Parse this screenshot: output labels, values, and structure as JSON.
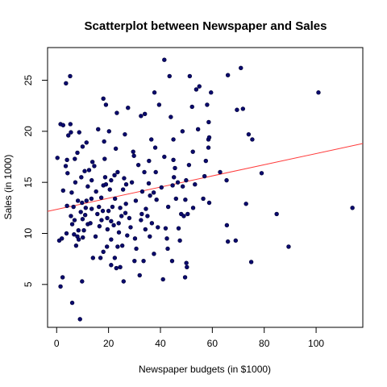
{
  "chart_data": {
    "type": "scatter",
    "title": "Scatterplot between Newspaper and Sales",
    "xlabel": "Newspaper budgets (in $1000)",
    "ylabel": "Sales (in 1000)",
    "xlim": [
      -3.5,
      118
    ],
    "ylim": [
      0.8,
      28.2
    ],
    "x_ticks": [
      0,
      20,
      40,
      60,
      80,
      100
    ],
    "y_ticks": [
      5,
      10,
      15,
      20,
      25
    ],
    "grid": false,
    "point_color": "#0a0a6e",
    "line_color": "#ff3b3b",
    "fit_line": {
      "intercept": 12.35,
      "slope": 0.0547
    },
    "points": [
      [
        0.3,
        17.4
      ],
      [
        1.0,
        9.3
      ],
      [
        1.5,
        4.8
      ],
      [
        1.5,
        20.7
      ],
      [
        2.0,
        9.5
      ],
      [
        2.3,
        5.7
      ],
      [
        2.5,
        14.2
      ],
      [
        2.5,
        20.6
      ],
      [
        3.5,
        16.6
      ],
      [
        3.6,
        24.7
      ],
      [
        3.8,
        10.0
      ],
      [
        4.0,
        17.2
      ],
      [
        4.0,
        12.7
      ],
      [
        4.2,
        15.9
      ],
      [
        4.5,
        19.6
      ],
      [
        5.2,
        25.4
      ],
      [
        5.3,
        20.7
      ],
      [
        5.5,
        19.9
      ],
      [
        5.5,
        11.7
      ],
      [
        5.8,
        14.0
      ],
      [
        6.0,
        10.9
      ],
      [
        6.0,
        3.2
      ],
      [
        6.5,
        12.6
      ],
      [
        6.7,
        9.9
      ],
      [
        6.9,
        11.3
      ],
      [
        7.0,
        17.3
      ],
      [
        7.2,
        15.0
      ],
      [
        7.5,
        8.8
      ],
      [
        8.0,
        17.9
      ],
      [
        8.0,
        9.7
      ],
      [
        8.2,
        13.2
      ],
      [
        8.4,
        10.3
      ],
      [
        8.5,
        9.4
      ],
      [
        8.7,
        19.9
      ],
      [
        9.0,
        1.6
      ],
      [
        9.3,
        12.1
      ],
      [
        9.5,
        15.5
      ],
      [
        9.8,
        5.3
      ],
      [
        9.8,
        13.0
      ],
      [
        10.0,
        11.4
      ],
      [
        10.0,
        18.5
      ],
      [
        10.1,
        9.6
      ],
      [
        10.5,
        10.3
      ],
      [
        10.8,
        16.1
      ],
      [
        11.0,
        11.8
      ],
      [
        11.2,
        12.5
      ],
      [
        11.5,
        13.2
      ],
      [
        11.5,
        18.9
      ],
      [
        12.0,
        14.6
      ],
      [
        12.0,
        10.9
      ],
      [
        12.5,
        16.2
      ],
      [
        13.0,
        11.0
      ],
      [
        13.4,
        13.4
      ],
      [
        13.5,
        12.4
      ],
      [
        13.5,
        15.2
      ],
      [
        13.8,
        17.0
      ],
      [
        14.0,
        7.6
      ],
      [
        14.5,
        16.6
      ],
      [
        15.0,
        9.7
      ],
      [
        15.2,
        14.1
      ],
      [
        15.7,
        11.9
      ],
      [
        16.0,
        20.2
      ],
      [
        16.3,
        12.6
      ],
      [
        16.5,
        10.7
      ],
      [
        16.9,
        7.6
      ],
      [
        17.2,
        13.5
      ],
      [
        17.3,
        11.3
      ],
      [
        17.8,
        12.2
      ],
      [
        18.0,
        14.7
      ],
      [
        18.0,
        8.2
      ],
      [
        18.0,
        23.2
      ],
      [
        18.3,
        19.0
      ],
      [
        18.5,
        17.3
      ],
      [
        18.7,
        15.5
      ],
      [
        19.0,
        22.6
      ],
      [
        19.0,
        14.8
      ],
      [
        19.4,
        8.7
      ],
      [
        19.5,
        11.5
      ],
      [
        19.6,
        10.4
      ],
      [
        20.0,
        12.2
      ],
      [
        20.2,
        20.0
      ],
      [
        20.5,
        14.3
      ],
      [
        21.0,
        9.4
      ],
      [
        21.0,
        6.9
      ],
      [
        21.0,
        15.2
      ],
      [
        21.0,
        11.2
      ],
      [
        21.5,
        12.6
      ],
      [
        22.0,
        10.8
      ],
      [
        22.3,
        15.7
      ],
      [
        22.4,
        7.6
      ],
      [
        22.5,
        13.4
      ],
      [
        22.8,
        18.3
      ],
      [
        23.0,
        6.6
      ],
      [
        23.2,
        21.8
      ],
      [
        23.5,
        16.0
      ],
      [
        23.5,
        8.7
      ],
      [
        23.9,
        11.0
      ],
      [
        24.0,
        10.1
      ],
      [
        24.5,
        6.7
      ],
      [
        24.5,
        12.5
      ],
      [
        25.0,
        11.7
      ],
      [
        25.3,
        8.8
      ],
      [
        25.6,
        14.3
      ],
      [
        25.8,
        5.3
      ],
      [
        26.0,
        15.4
      ],
      [
        26.3,
        19.7
      ],
      [
        26.5,
        12.0
      ],
      [
        26.7,
        12.9
      ],
      [
        26.8,
        14.8
      ],
      [
        27.2,
        9.8
      ],
      [
        27.5,
        22.3
      ],
      [
        28.0,
        11.5
      ],
      [
        28.5,
        10.6
      ],
      [
        29.0,
        15.0
      ],
      [
        29.5,
        18.0
      ],
      [
        29.8,
        17.6
      ],
      [
        30.0,
        7.3
      ],
      [
        30.2,
        9.5
      ],
      [
        30.5,
        13.2
      ],
      [
        30.7,
        8.5
      ],
      [
        31.5,
        16.7
      ],
      [
        32.0,
        5.9
      ],
      [
        32.5,
        11.3
      ],
      [
        32.5,
        21.5
      ],
      [
        32.8,
        11.9
      ],
      [
        33.0,
        14.1
      ],
      [
        33.5,
        7.3
      ],
      [
        33.8,
        16.0
      ],
      [
        34.0,
        21.7
      ],
      [
        34.2,
        10.4
      ],
      [
        34.4,
        12.4
      ],
      [
        35.0,
        11.7
      ],
      [
        35.5,
        14.9
      ],
      [
        35.6,
        17.1
      ],
      [
        35.9,
        9.7
      ],
      [
        36.0,
        13.7
      ],
      [
        36.5,
        19.2
      ],
      [
        36.7,
        11.0
      ],
      [
        37.4,
        14.0
      ],
      [
        37.5,
        8.0
      ],
      [
        37.7,
        23.8
      ],
      [
        38.0,
        18.4
      ],
      [
        38.2,
        16.0
      ],
      [
        38.5,
        13.3
      ],
      [
        39.0,
        10.6
      ],
      [
        39.5,
        22.6
      ],
      [
        40.4,
        14.5
      ],
      [
        41.0,
        5.5
      ],
      [
        41.5,
        27.0
      ],
      [
        41.5,
        17.5
      ],
      [
        42.0,
        10.5
      ],
      [
        42.5,
        9.5
      ],
      [
        42.8,
        8.5
      ],
      [
        43.0,
        12.6
      ],
      [
        43.5,
        25.4
      ],
      [
        44.0,
        21.4
      ],
      [
        44.5,
        7.3
      ],
      [
        44.7,
        14.7
      ],
      [
        45.0,
        19.2
      ],
      [
        45.0,
        17.2
      ],
      [
        45.2,
        15.5
      ],
      [
        45.6,
        16.4
      ],
      [
        46.0,
        13.4
      ],
      [
        46.7,
        15.0
      ],
      [
        47.0,
        10.5
      ],
      [
        47.5,
        9.3
      ],
      [
        48.0,
        11.9
      ],
      [
        48.5,
        20.0
      ],
      [
        48.6,
        14.6
      ],
      [
        49.0,
        11.7
      ],
      [
        49.5,
        5.7
      ],
      [
        49.6,
        13.3
      ],
      [
        49.9,
        15.2
      ],
      [
        50.0,
        7.1
      ],
      [
        50.2,
        6.7
      ],
      [
        50.5,
        11.9
      ],
      [
        51.0,
        16.7
      ],
      [
        51.3,
        25.4
      ],
      [
        52.2,
        22.4
      ],
      [
        52.5,
        18.0
      ],
      [
        52.6,
        12.5
      ],
      [
        53.3,
        14.8
      ],
      [
        53.8,
        24.1
      ],
      [
        54.5,
        20.2
      ],
      [
        55.0,
        24.4
      ],
      [
        56.5,
        13.4
      ],
      [
        57.0,
        15.6
      ],
      [
        57.5,
        17.1
      ],
      [
        58.0,
        22.6
      ],
      [
        58.5,
        18.4
      ],
      [
        58.5,
        19.2
      ],
      [
        58.6,
        20.9
      ],
      [
        58.8,
        19.4
      ],
      [
        58.8,
        13.0
      ],
      [
        59.5,
        23.8
      ],
      [
        63.0,
        16.0
      ],
      [
        65.5,
        15.2
      ],
      [
        65.6,
        10.8
      ],
      [
        66.0,
        9.2
      ],
      [
        66.0,
        25.5
      ],
      [
        69.0,
        9.3
      ],
      [
        69.5,
        22.1
      ],
      [
        71.0,
        26.2
      ],
      [
        71.8,
        22.2
      ],
      [
        73.0,
        12.9
      ],
      [
        74.0,
        19.7
      ],
      [
        75.0,
        7.2
      ],
      [
        75.4,
        19.2
      ],
      [
        79.0,
        15.9
      ],
      [
        84.8,
        11.9
      ],
      [
        89.4,
        8.7
      ],
      [
        100.9,
        23.8
      ],
      [
        114.0,
        12.5
      ]
    ]
  }
}
